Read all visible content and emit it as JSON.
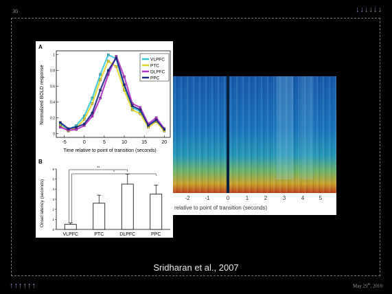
{
  "slide": {
    "number": "30",
    "nav_arrows_top": "↓↓↓↓↓↓",
    "nav_arrows_bottom": "↑↑↑↑↑↑",
    "date_main": "May 29",
    "date_sup": "th",
    "date_year": ", 2010",
    "citation": "Sridharan et al., 2007"
  },
  "colors": {
    "background": "#000000",
    "VLPFC": "#39c6d8",
    "PTC": "#e3d72b",
    "DLPFC": "#b231c9",
    "PPC": "#1f2a86"
  },
  "spectrogram": {
    "x_ticks": [
      "-2",
      "-1",
      "0",
      "1",
      "2",
      "3",
      "4",
      "5"
    ],
    "xlabel_fragment": "relative to point of transition (seconds)"
  },
  "chart_data": [
    {
      "type": "line",
      "panel_label": "A",
      "xlabel": "Time relative to point of transition (seconds)",
      "ylabel": "Normalized BOLD response",
      "x": [
        -6,
        -4,
        -2,
        0,
        2,
        4,
        6,
        8,
        10,
        12,
        14,
        16,
        18,
        20
      ],
      "x_ticks": [
        "-5",
        "0",
        "5",
        "10",
        "15",
        "20"
      ],
      "x_tick_values": [
        -5,
        0,
        5,
        10,
        15,
        20
      ],
      "y_ticks": [
        "0",
        "0.2",
        "0.4",
        "0.6",
        "0.8",
        "1"
      ],
      "y_tick_values": [
        0,
        0.2,
        0.4,
        0.6,
        0.8,
        1
      ],
      "xlim": [
        -7,
        21.5
      ],
      "ylim": [
        -0.05,
        1.05
      ],
      "series": [
        {
          "name": "VLPFC",
          "values": [
            0.12,
            0.05,
            0.1,
            0.22,
            0.45,
            0.75,
            1.0,
            0.95,
            0.6,
            0.33,
            0.28,
            0.1,
            0.18,
            0.05
          ]
        },
        {
          "name": "PTC",
          "values": [
            0.1,
            0.03,
            0.07,
            0.18,
            0.38,
            0.68,
            0.92,
            0.85,
            0.55,
            0.3,
            0.25,
            0.08,
            0.15,
            0.03
          ]
        },
        {
          "name": "DLPFC",
          "values": [
            0.08,
            0.04,
            0.05,
            0.1,
            0.22,
            0.45,
            0.75,
            0.98,
            0.72,
            0.38,
            0.33,
            0.12,
            0.2,
            0.06
          ]
        },
        {
          "name": "PPC",
          "values": [
            0.14,
            0.06,
            0.08,
            0.12,
            0.26,
            0.55,
            0.8,
            0.96,
            0.62,
            0.35,
            0.3,
            0.1,
            0.17,
            0.05
          ]
        }
      ]
    },
    {
      "type": "bar",
      "panel_label": "B",
      "ylabel": "Onset latency (seconds)",
      "categories": [
        "VLPFC",
        "PTC",
        "DLPFC",
        "PPC"
      ],
      "values": [
        0.5,
        2.6,
        4.5,
        3.5
      ],
      "errors": [
        0.15,
        0.8,
        1.0,
        0.9
      ],
      "ylim": [
        0,
        6
      ],
      "y_ticks": [
        "0",
        "1",
        "2",
        "3",
        "4",
        "5",
        "6"
      ],
      "y_tick_values": [
        0,
        1,
        2,
        3,
        4,
        5,
        6
      ],
      "significance": [
        {
          "from": "VLPFC",
          "to": "DLPFC",
          "label": "**"
        },
        {
          "from": "VLPFC",
          "to": "PPC",
          "label": "*"
        }
      ]
    }
  ]
}
